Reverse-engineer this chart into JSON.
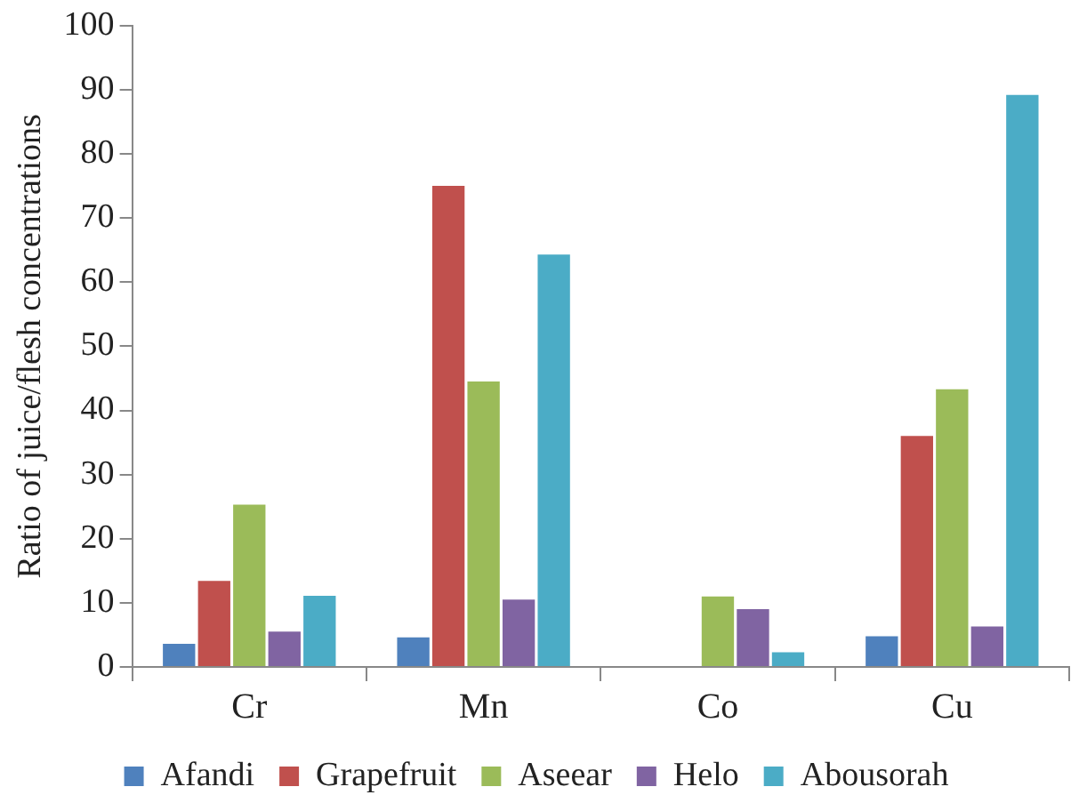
{
  "chart_data": {
    "type": "bar",
    "ylabel": "Ratio of juice/flesh concentrations",
    "categories": [
      "Cr",
      "Mn",
      "Co",
      "Cu"
    ],
    "series": [
      {
        "name": "Afandi",
        "color": "#4f81bd",
        "values": [
          3.6,
          4.6,
          0,
          4.8
        ]
      },
      {
        "name": "Grapefruit",
        "color": "#c0504d",
        "values": [
          13.4,
          75,
          0,
          36
        ]
      },
      {
        "name": "Aseear",
        "color": "#9bbb59",
        "values": [
          25.3,
          44.5,
          11,
          43.3
        ]
      },
      {
        "name": "Helo",
        "color": "#8064a2",
        "values": [
          5.5,
          10.5,
          9,
          6.3
        ]
      },
      {
        "name": "Abousorah",
        "color": "#4bacc6",
        "values": [
          11.1,
          64.3,
          2.3,
          89.2
        ]
      }
    ],
    "ylim": [
      0,
      100
    ],
    "yticks": [
      0,
      10,
      20,
      30,
      40,
      50,
      60,
      70,
      80,
      90,
      100
    ],
    "grid": false,
    "legend": "bottom"
  }
}
